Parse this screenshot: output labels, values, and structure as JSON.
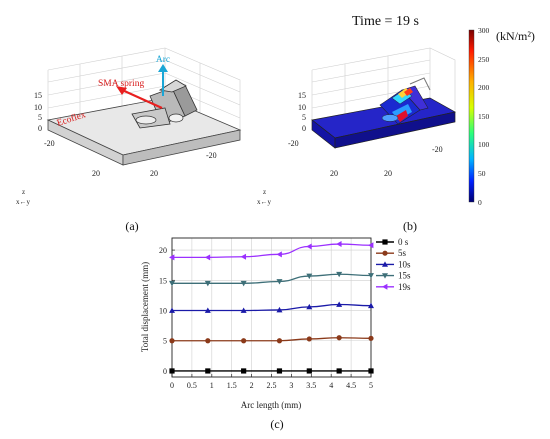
{
  "panel_a": {
    "label": "(a)",
    "callouts": {
      "arc": "Arc",
      "sma": "SMA spring",
      "ecoflex": "Ecoflex"
    },
    "z_ticks": [
      "15",
      "10",
      "5",
      "0"
    ],
    "x_ticks": [
      "-20",
      "20"
    ],
    "y_ticks": [
      "-20",
      "20"
    ],
    "triad": {
      "z": "z",
      "xy": "x←y"
    }
  },
  "panel_b": {
    "label": "(b)",
    "time_label": "Time = 19 s",
    "z_ticks": [
      "15",
      "10",
      "5",
      "0"
    ],
    "x_ticks": [
      "-20",
      "20"
    ],
    "y_ticks": [
      "-20",
      "20"
    ],
    "triad": {
      "z": "z",
      "xy": "x←y"
    },
    "colorbar": {
      "unit": "(kN/m²)",
      "ticks": [
        "300",
        "250",
        "200",
        "150",
        "100",
        "50",
        "0"
      ],
      "colors": [
        "#7a0000",
        "#ff1a00",
        "#ffb000",
        "#d8ff00",
        "#2cff7a",
        "#00b4ff",
        "#0020ff",
        "#000070"
      ]
    }
  },
  "panel_c": {
    "label": "(c)"
  },
  "chart_data": {
    "type": "line",
    "xlabel": "Arc length (mm)",
    "ylabel": "Total displacement (mm)",
    "xlim": [
      0,
      5
    ],
    "ylim": [
      -1,
      22
    ],
    "x_ticks": [
      0,
      0.5,
      1,
      1.5,
      2,
      2.5,
      3,
      3.5,
      4,
      4.5,
      5
    ],
    "y_ticks": [
      0,
      5,
      10,
      15,
      20
    ],
    "grid": true,
    "legend_position": "right",
    "series": [
      {
        "name": "0 s",
        "color": "#000000",
        "marker": "square",
        "x": [
          0,
          0.9,
          1.8,
          2.7,
          3.45,
          4.2,
          5
        ],
        "y": [
          0,
          0,
          0,
          0,
          0,
          0,
          0
        ]
      },
      {
        "name": "5s",
        "color": "#8b3a1a",
        "marker": "circle",
        "x": [
          0,
          0.9,
          1.8,
          2.7,
          3.45,
          4.2,
          5
        ],
        "y": [
          5.0,
          5.0,
          5.0,
          5.0,
          5.3,
          5.5,
          5.4
        ]
      },
      {
        "name": "10s",
        "color": "#1a1aa8",
        "marker": "triangle-up",
        "x": [
          0,
          0.9,
          1.8,
          2.7,
          3.45,
          4.2,
          5
        ],
        "y": [
          10.0,
          10.0,
          10.0,
          10.1,
          10.6,
          11.0,
          10.8
        ]
      },
      {
        "name": "15s",
        "color": "#3e6f78",
        "marker": "triangle-down",
        "x": [
          0,
          0.9,
          1.8,
          2.7,
          3.45,
          4.2,
          5
        ],
        "y": [
          14.5,
          14.5,
          14.5,
          14.8,
          15.7,
          16.0,
          15.8
        ]
      },
      {
        "name": "19s",
        "color": "#9b30ff",
        "marker": "triangle-left",
        "x": [
          0,
          0.9,
          1.8,
          2.7,
          3.45,
          4.2,
          5
        ],
        "y": [
          18.8,
          18.8,
          18.9,
          19.3,
          20.6,
          21.0,
          20.8
        ]
      }
    ]
  }
}
